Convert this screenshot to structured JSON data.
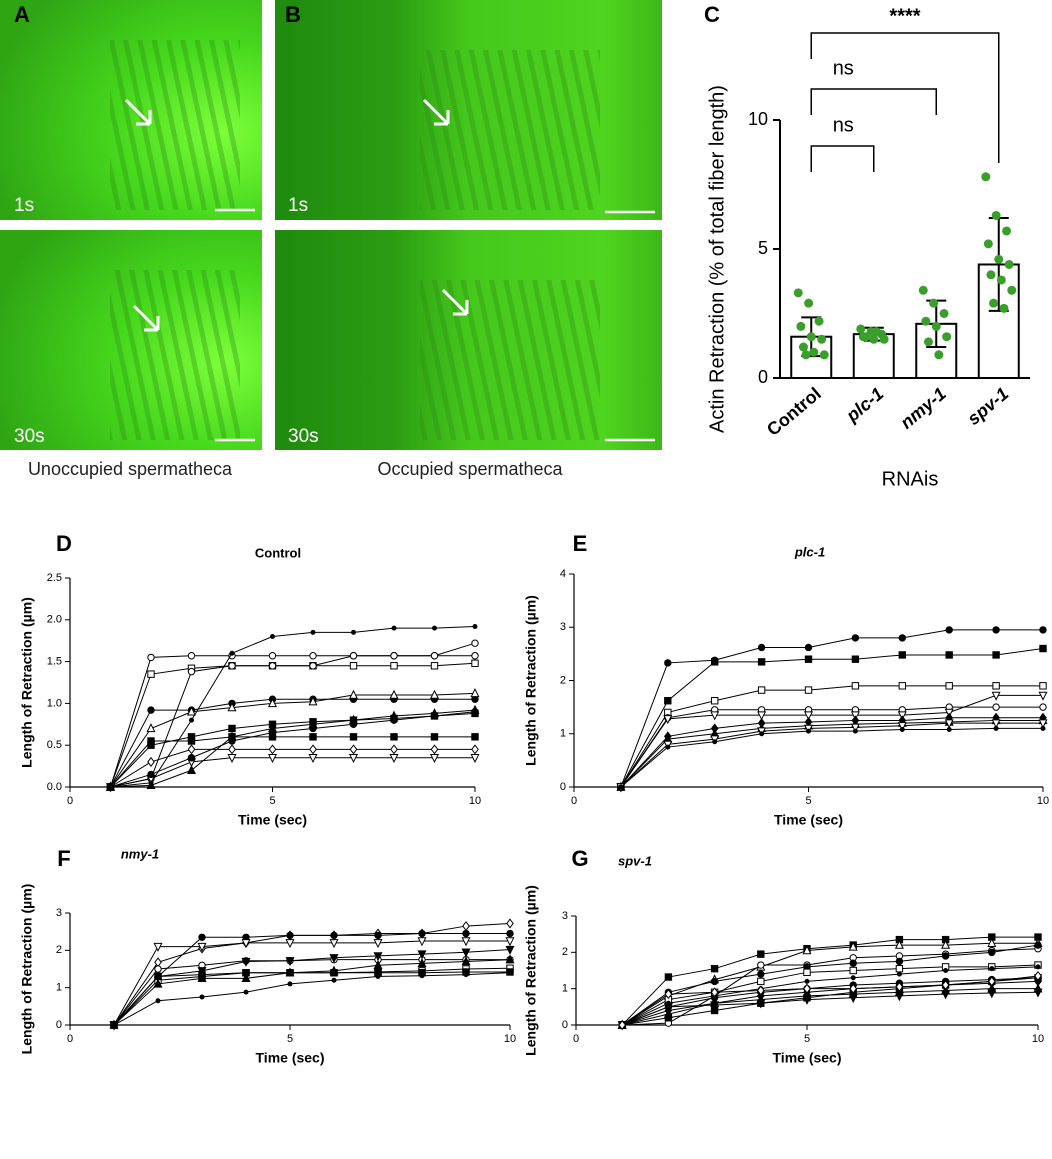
{
  "figure": {
    "panel_labels": [
      "A",
      "B",
      "C",
      "D",
      "E",
      "F",
      "G"
    ],
    "image_times": [
      "1s",
      "30s"
    ],
    "captions": [
      "Unoccupied spermatheca",
      "Occupied spermatheca"
    ]
  },
  "chart_data": [
    {
      "type": "bar",
      "categories": [
        "Control",
        "plc-1",
        "nmy-1",
        "spv-1"
      ],
      "category_styles": [
        "normal",
        "italic",
        "italic",
        "italic"
      ],
      "values": [
        1.6,
        1.7,
        2.1,
        4.4
      ],
      "errors": [
        0.75,
        0.25,
        0.9,
        1.8
      ],
      "points": [
        [
          3.3,
          2.9,
          2.2,
          2.0,
          1.6,
          1.5,
          1.2,
          1.0,
          0.9,
          0.9
        ],
        [
          1.9,
          1.8,
          1.7,
          1.6,
          1.5,
          1.5,
          1.6,
          1.8
        ],
        [
          3.4,
          2.9,
          2.5,
          2.2,
          2.0,
          1.6,
          1.4,
          0.9
        ],
        [
          7.8,
          6.3,
          5.7,
          5.2,
          4.6,
          4.4,
          4.0,
          3.8,
          3.4,
          2.9,
          2.7
        ]
      ],
      "ylim": [
        0,
        10
      ],
      "yticks": [
        0,
        5,
        10
      ],
      "y_label": "Actin Retraction (% of total fiber length)",
      "x_label": "RNAis",
      "annotations": [
        "ns",
        "ns",
        "****"
      ],
      "color": "#ffffff",
      "point_color": "#3a9e2a"
    },
    {
      "type": "line",
      "title": "Control",
      "title_style": "normal",
      "x": [
        1,
        2,
        3,
        4,
        5,
        6,
        7,
        8,
        9,
        10
      ],
      "xlim": [
        0,
        10
      ],
      "xticks": [
        0,
        5,
        10
      ],
      "ylim": [
        0,
        2.5
      ],
      "yticks": [
        {
          "value": 0,
          "label": "0.0"
        },
        0.5,
        {
          "value": 1,
          "label": "1.0"
        },
        1.5,
        {
          "value": 2,
          "label": "2.0"
        },
        2.5
      ],
      "x_label": "Time (sec)",
      "y_label": "Length of Retraction (µm)",
      "color": "#000000",
      "series": [
        {
          "marker": "open-circle",
          "values": [
            0,
            1.55,
            1.57,
            1.57,
            1.57,
            1.57,
            1.57,
            1.57,
            1.57,
            1.57
          ]
        },
        {
          "marker": "open-square",
          "values": [
            0,
            1.35,
            1.42,
            1.45,
            1.45,
            1.45,
            1.45,
            1.45,
            1.45,
            1.48
          ]
        },
        {
          "marker": "dot",
          "values": [
            0,
            0.05,
            0.8,
            1.6,
            1.8,
            1.85,
            1.85,
            1.9,
            1.9,
            1.92
          ]
        },
        {
          "marker": "open-circle",
          "values": [
            0,
            0.1,
            1.38,
            1.45,
            1.45,
            1.45,
            1.57,
            1.57,
            1.57,
            1.72
          ]
        },
        {
          "marker": "circle",
          "values": [
            0,
            0.92,
            0.92,
            1.0,
            1.05,
            1.05,
            1.05,
            1.05,
            1.05,
            1.05
          ]
        },
        {
          "marker": "open-triangle",
          "values": [
            0,
            0.7,
            0.9,
            0.95,
            1.0,
            1.02,
            1.1,
            1.1,
            1.1,
            1.12
          ]
        },
        {
          "marker": "square",
          "values": [
            0,
            0.5,
            0.6,
            0.7,
            0.75,
            0.78,
            0.8,
            0.82,
            0.85,
            0.88
          ]
        },
        {
          "marker": "square",
          "values": [
            0,
            0.55,
            0.55,
            0.6,
            0.6,
            0.6,
            0.6,
            0.6,
            0.6,
            0.6
          ]
        },
        {
          "marker": "open-diamond",
          "values": [
            0,
            0.3,
            0.45,
            0.45,
            0.45,
            0.45,
            0.45,
            0.45,
            0.45,
            0.45
          ]
        },
        {
          "marker": "open-tri-down",
          "values": [
            0,
            0.1,
            0.3,
            0.35,
            0.35,
            0.35,
            0.35,
            0.35,
            0.35,
            0.35
          ]
        },
        {
          "marker": "triangle",
          "values": [
            0,
            0.02,
            0.2,
            0.6,
            0.7,
            0.75,
            0.8,
            0.85,
            0.88,
            0.92
          ]
        },
        {
          "marker": "circle",
          "values": [
            0,
            0.15,
            0.35,
            0.55,
            0.65,
            0.7,
            0.75,
            0.8,
            0.85,
            0.9
          ]
        }
      ]
    },
    {
      "type": "line",
      "title": "plc-1",
      "title_style": "italic",
      "x": [
        1,
        2,
        3,
        4,
        5,
        6,
        7,
        8,
        9,
        10
      ],
      "xlim": [
        0,
        10
      ],
      "xticks": [
        0,
        5,
        10
      ],
      "ylim": [
        0,
        4
      ],
      "yticks": [
        0,
        1,
        2,
        3,
        4
      ],
      "x_label": "Time (sec)",
      "y_label": "Length of Retraction (µm)",
      "color": "#000000",
      "series": [
        {
          "marker": "circle",
          "values": [
            0,
            2.33,
            2.38,
            2.62,
            2.62,
            2.8,
            2.8,
            2.95,
            2.95,
            2.95
          ]
        },
        {
          "marker": "square",
          "values": [
            0,
            1.62,
            2.35,
            2.35,
            2.4,
            2.4,
            2.48,
            2.48,
            2.48,
            2.6
          ]
        },
        {
          "marker": "open-square",
          "values": [
            0,
            1.4,
            1.62,
            1.82,
            1.82,
            1.9,
            1.9,
            1.9,
            1.9,
            1.9
          ]
        },
        {
          "marker": "open-circle",
          "values": [
            0,
            1.3,
            1.45,
            1.45,
            1.45,
            1.45,
            1.45,
            1.5,
            1.5,
            1.5
          ]
        },
        {
          "marker": "open-tri-down",
          "values": [
            0,
            1.28,
            1.35,
            1.35,
            1.35,
            1.35,
            1.35,
            1.4,
            1.72,
            1.72
          ]
        },
        {
          "marker": "diamond",
          "values": [
            0,
            0.95,
            1.1,
            1.2,
            1.22,
            1.25,
            1.25,
            1.3,
            1.3,
            1.3
          ]
        },
        {
          "marker": "triangle",
          "values": [
            0,
            0.9,
            1.0,
            1.1,
            1.15,
            1.18,
            1.2,
            1.22,
            1.25,
            1.25
          ]
        },
        {
          "marker": "open-tri-down",
          "values": [
            0,
            0.8,
            0.9,
            1.05,
            1.1,
            1.12,
            1.15,
            1.2,
            1.2,
            1.2
          ]
        },
        {
          "marker": "dot",
          "values": [
            0,
            0.75,
            0.85,
            1.0,
            1.05,
            1.05,
            1.08,
            1.08,
            1.1,
            1.1
          ]
        }
      ]
    },
    {
      "type": "line",
      "title": "nmy-1",
      "title_style": "italic",
      "x": [
        1,
        2,
        3,
        4,
        5,
        6,
        7,
        8,
        9,
        10
      ],
      "xlim": [
        0,
        10
      ],
      "xticks": [
        0,
        5,
        10
      ],
      "ylim": [
        0,
        3
      ],
      "yticks": [
        0,
        1,
        2,
        3
      ],
      "x_label": "Time (sec)",
      "y_label": "Length of Retraction (µm)",
      "color": "#000000",
      "series": [
        {
          "marker": "open-diamond",
          "values": [
            0,
            1.68,
            2.05,
            2.2,
            2.4,
            2.4,
            2.45,
            2.45,
            2.65,
            2.72
          ]
        },
        {
          "marker": "circle",
          "values": [
            0,
            1.3,
            2.35,
            2.35,
            2.4,
            2.4,
            2.4,
            2.45,
            2.45,
            2.45
          ]
        },
        {
          "marker": "open-tri-down",
          "values": [
            0,
            2.1,
            2.1,
            2.2,
            2.2,
            2.2,
            2.2,
            2.25,
            2.25,
            2.25
          ]
        },
        {
          "marker": "open-circle",
          "values": [
            0,
            1.5,
            1.6,
            1.72,
            1.72,
            1.75,
            1.75,
            1.75,
            1.75,
            1.75
          ]
        },
        {
          "marker": "tri-down",
          "values": [
            0,
            1.3,
            1.45,
            1.7,
            1.72,
            1.8,
            1.85,
            1.9,
            1.95,
            2.02
          ]
        },
        {
          "marker": "open-square",
          "values": [
            0,
            1.2,
            1.3,
            1.4,
            1.4,
            1.4,
            1.42,
            1.45,
            1.5,
            1.52
          ]
        },
        {
          "marker": "triangle",
          "values": [
            0,
            1.1,
            1.25,
            1.25,
            1.4,
            1.45,
            1.6,
            1.65,
            1.7,
            1.75
          ]
        },
        {
          "marker": "dot",
          "values": [
            0,
            0.65,
            0.75,
            0.88,
            1.1,
            1.2,
            1.3,
            1.32,
            1.35,
            1.4
          ]
        },
        {
          "marker": "square",
          "values": [
            0,
            1.3,
            1.35,
            1.4,
            1.4,
            1.4,
            1.4,
            1.4,
            1.42,
            1.42
          ]
        }
      ]
    },
    {
      "type": "line",
      "title": "spv-1",
      "title_style": "italic",
      "x": [
        1,
        2,
        3,
        4,
        5,
        6,
        7,
        8,
        9,
        10
      ],
      "xlim": [
        0,
        10
      ],
      "xticks": [
        0,
        5,
        10
      ],
      "ylim": [
        0,
        3
      ],
      "yticks": [
        0,
        1,
        2,
        3
      ],
      "x_label": "Time (sec)",
      "y_label": "Length of Retraction (µm)",
      "color": "#000000",
      "series": [
        {
          "marker": "square",
          "values": [
            0,
            1.32,
            1.55,
            1.95,
            2.1,
            2.2,
            2.35,
            2.35,
            2.42,
            2.42
          ]
        },
        {
          "marker": "open-triangle",
          "values": [
            0,
            0.8,
            1.25,
            1.6,
            2.05,
            2.15,
            2.2,
            2.2,
            2.25,
            2.25
          ]
        },
        {
          "marker": "open-circle",
          "values": [
            0,
            0.05,
            0.8,
            1.65,
            1.65,
            1.85,
            1.9,
            1.95,
            2.05,
            2.1
          ]
        },
        {
          "marker": "circle",
          "values": [
            0,
            0.9,
            1.2,
            1.4,
            1.6,
            1.7,
            1.75,
            1.9,
            2.0,
            2.2
          ]
        },
        {
          "marker": "open-square",
          "values": [
            0,
            0.7,
            0.9,
            1.2,
            1.45,
            1.5,
            1.55,
            1.6,
            1.6,
            1.65
          ]
        },
        {
          "marker": "dot",
          "values": [
            0,
            0.6,
            0.8,
            1.0,
            1.2,
            1.3,
            1.4,
            1.5,
            1.55,
            1.6
          ]
        },
        {
          "marker": "circle",
          "values": [
            0,
            0.5,
            0.75,
            0.9,
            1.0,
            1.1,
            1.15,
            1.2,
            1.25,
            1.3
          ]
        },
        {
          "marker": "diamond",
          "values": [
            0,
            0.4,
            0.6,
            0.8,
            0.9,
            1.0,
            1.05,
            1.1,
            1.15,
            1.2
          ]
        },
        {
          "marker": "triangle",
          "values": [
            0,
            0.3,
            0.6,
            0.7,
            0.8,
            0.85,
            0.9,
            0.95,
            1.0,
            1.0
          ]
        },
        {
          "marker": "tri-down",
          "values": [
            0,
            0.5,
            0.55,
            0.6,
            0.7,
            0.75,
            0.8,
            0.85,
            0.88,
            0.9
          ]
        },
        {
          "marker": "square",
          "values": [
            0,
            0.2,
            0.4,
            0.6,
            0.75,
            0.9,
            1.0,
            1.1,
            1.2,
            1.3
          ]
        },
        {
          "marker": "open-diamond",
          "values": [
            0,
            0.85,
            0.9,
            0.95,
            1.0,
            1.0,
            1.05,
            1.1,
            1.2,
            1.35
          ]
        }
      ]
    }
  ]
}
